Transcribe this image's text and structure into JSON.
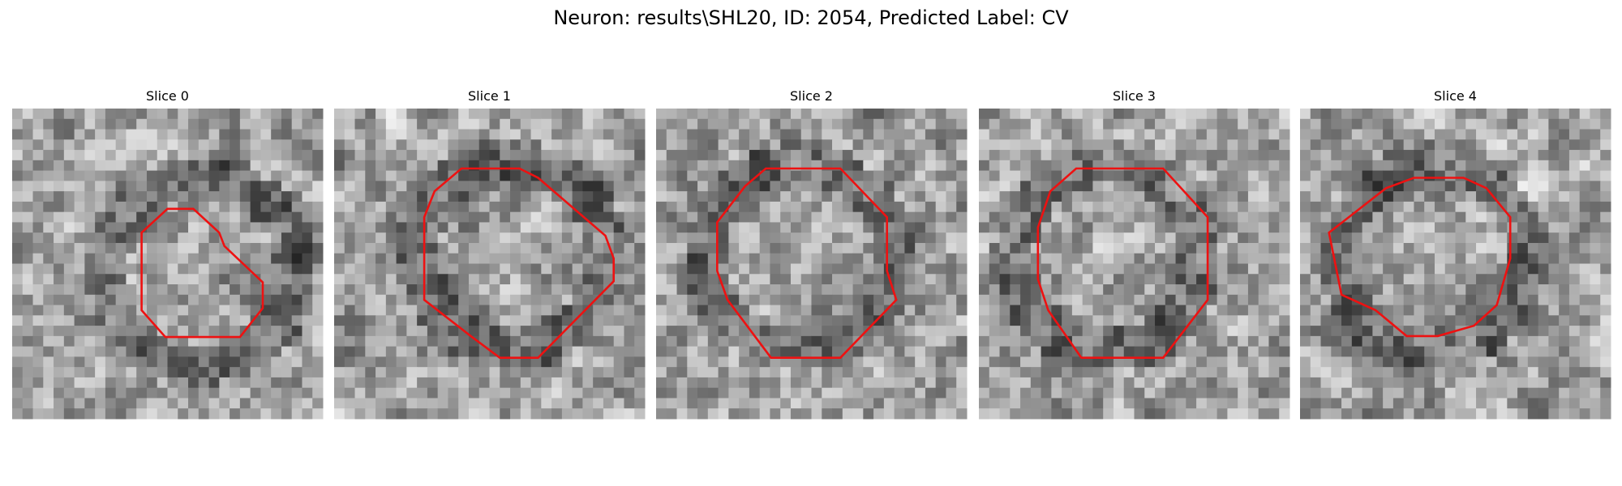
{
  "header": {
    "title": "Neuron: results\\SHL20, ID: 2054, Predicted Label: CV"
  },
  "panels": [
    {
      "title": "Slice 0"
    },
    {
      "title": "Slice 1"
    },
    {
      "title": "Slice 2"
    },
    {
      "title": "Slice 3"
    },
    {
      "title": "Slice 4"
    }
  ]
}
